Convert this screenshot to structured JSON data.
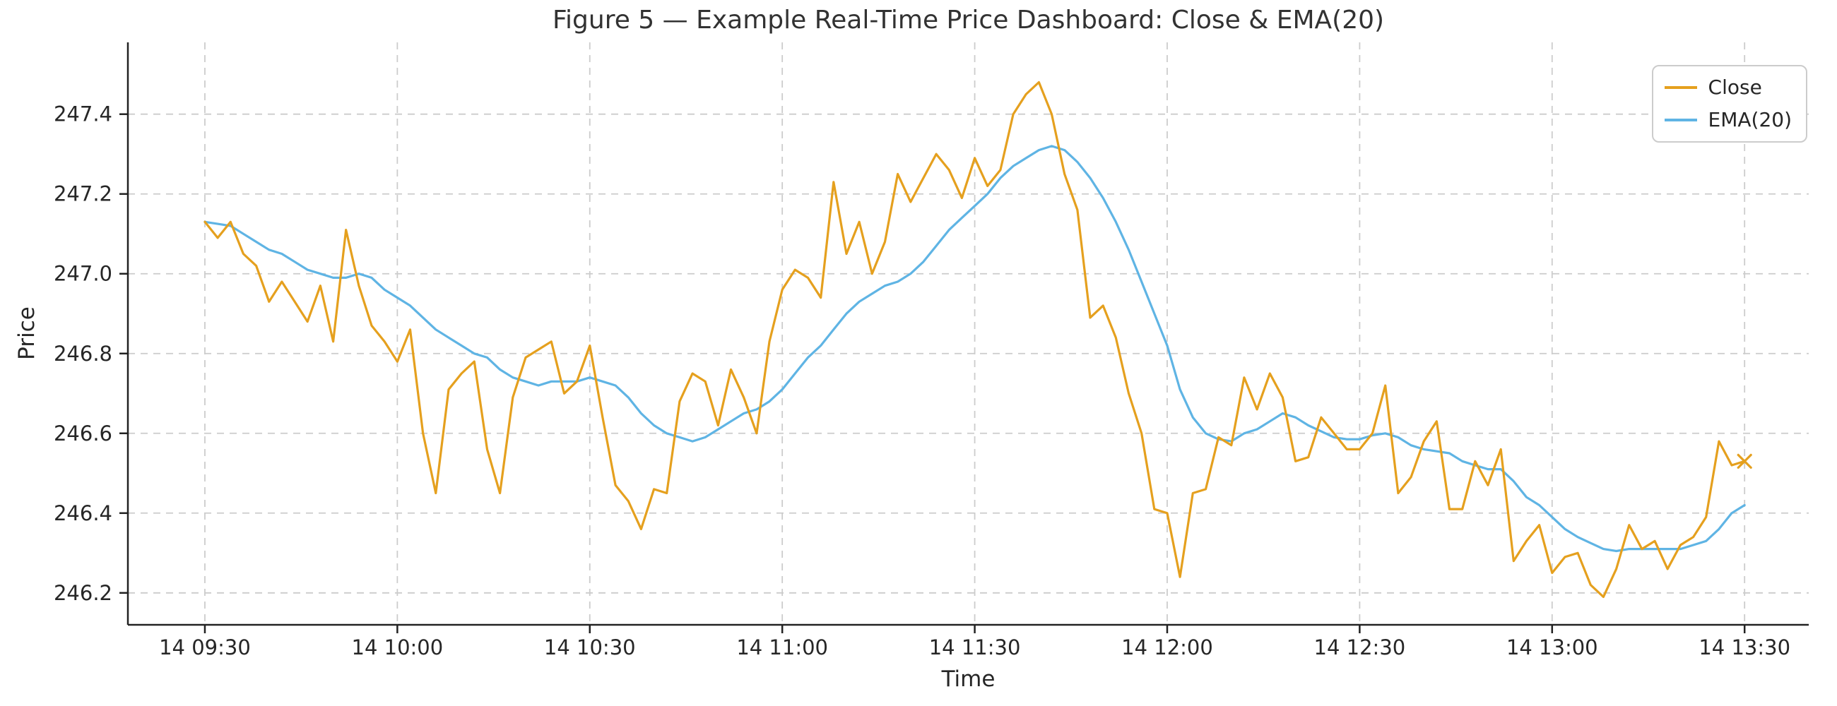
{
  "figure": {
    "title": "Figure 5 — Example Real-Time Price Dashboard: Close & EMA(20)",
    "xlabel": "Time",
    "ylabel": "Price"
  },
  "legend": {
    "position": "upper right",
    "items": [
      {
        "label": "Close",
        "color": "#E5A01E"
      },
      {
        "label": "EMA(20)",
        "color": "#5FB4E4"
      }
    ]
  },
  "chart_data": {
    "type": "line",
    "title": "Figure 5 — Example Real-Time Price Dashboard: Close & EMA(20)",
    "xlabel": "Time",
    "ylabel": "Price",
    "grid": "dashed-both-axes",
    "grid_color": "#cccccc",
    "legend_position": "upper right",
    "x_start_time": "14 09:30",
    "x_end_time": "14 13:30",
    "x_step_minutes": 2,
    "xlim_minutes": [
      -12,
      250
    ],
    "ylim": [
      246.12,
      247.58
    ],
    "x_ticks": [
      {
        "minute": 0,
        "label": "14 09:30"
      },
      {
        "minute": 30,
        "label": "14 10:00"
      },
      {
        "minute": 60,
        "label": "14 10:30"
      },
      {
        "minute": 90,
        "label": "14 11:00"
      },
      {
        "minute": 120,
        "label": "14 11:30"
      },
      {
        "minute": 150,
        "label": "14 12:00"
      },
      {
        "minute": 180,
        "label": "14 12:30"
      },
      {
        "minute": 210,
        "label": "14 13:00"
      },
      {
        "minute": 240,
        "label": "14 13:30"
      }
    ],
    "y_ticks": [
      {
        "value": 246.2,
        "label": "246.2"
      },
      {
        "value": 246.4,
        "label": "246.4"
      },
      {
        "value": 246.6,
        "label": "246.6"
      },
      {
        "value": 246.8,
        "label": "246.8"
      },
      {
        "value": 247.0,
        "label": "247.0"
      },
      {
        "value": 247.2,
        "label": "247.2"
      },
      {
        "value": 247.4,
        "label": "247.4"
      }
    ],
    "series": [
      {
        "name": "Close",
        "color": "#E5A01E",
        "line_width": 3.2,
        "last_marker": "x",
        "values": [
          247.13,
          247.09,
          247.13,
          247.05,
          247.02,
          246.93,
          246.98,
          246.93,
          246.88,
          246.97,
          246.83,
          247.11,
          246.97,
          246.87,
          246.83,
          246.78,
          246.86,
          246.6,
          246.45,
          246.71,
          246.75,
          246.78,
          246.56,
          246.45,
          246.69,
          246.79,
          246.81,
          246.83,
          246.7,
          246.73,
          246.82,
          246.64,
          246.47,
          246.43,
          246.36,
          246.46,
          246.45,
          246.68,
          246.75,
          246.73,
          246.62,
          246.76,
          246.69,
          246.6,
          246.83,
          246.96,
          247.01,
          246.99,
          246.94,
          247.23,
          247.05,
          247.13,
          247.0,
          247.08,
          247.25,
          247.18,
          247.24,
          247.3,
          247.26,
          247.19,
          247.29,
          247.22,
          247.26,
          247.4,
          247.45,
          247.48,
          247.4,
          247.25,
          247.16,
          246.89,
          246.92,
          246.84,
          246.7,
          246.6,
          246.41,
          246.4,
          246.24,
          246.45,
          246.46,
          246.59,
          246.57,
          246.74,
          246.66,
          246.75,
          246.69,
          246.53,
          246.54,
          246.64,
          246.6,
          246.56,
          246.56,
          246.6,
          246.72,
          246.45,
          246.49,
          246.58,
          246.63,
          246.41,
          246.41,
          246.53,
          246.47,
          246.56,
          246.28,
          246.33,
          246.37,
          246.25,
          246.29,
          246.3,
          246.22,
          246.19,
          246.26,
          246.37,
          246.31,
          246.33,
          246.26,
          246.32,
          246.34,
          246.39,
          246.58,
          246.52,
          246.53
        ]
      },
      {
        "name": "EMA(20)",
        "color": "#5FB4E4",
        "line_width": 3.2,
        "last_marker": "none",
        "values": [
          247.13,
          247.125,
          247.12,
          247.1,
          247.08,
          247.06,
          247.05,
          247.03,
          247.01,
          247.0,
          246.99,
          246.99,
          247.0,
          246.99,
          246.96,
          246.94,
          246.92,
          246.89,
          246.86,
          246.84,
          246.82,
          246.8,
          246.79,
          246.76,
          246.74,
          246.73,
          246.72,
          246.73,
          246.73,
          246.73,
          246.74,
          246.73,
          246.72,
          246.69,
          246.65,
          246.62,
          246.6,
          246.59,
          246.58,
          246.59,
          246.61,
          246.63,
          246.65,
          246.66,
          246.68,
          246.71,
          246.75,
          246.79,
          246.82,
          246.86,
          246.9,
          246.93,
          246.95,
          246.97,
          246.98,
          247.0,
          247.03,
          247.07,
          247.11,
          247.14,
          247.17,
          247.2,
          247.24,
          247.27,
          247.29,
          247.31,
          247.32,
          247.31,
          247.28,
          247.24,
          247.19,
          247.13,
          247.06,
          246.98,
          246.9,
          246.82,
          246.71,
          246.64,
          246.6,
          246.585,
          246.58,
          246.6,
          246.61,
          246.63,
          246.65,
          246.64,
          246.62,
          246.605,
          246.59,
          246.585,
          246.585,
          246.595,
          246.6,
          246.59,
          246.57,
          246.56,
          246.555,
          246.55,
          246.53,
          246.52,
          246.51,
          246.51,
          246.48,
          246.44,
          246.42,
          246.39,
          246.36,
          246.34,
          246.325,
          246.31,
          246.305,
          246.31,
          246.31,
          246.31,
          246.31,
          246.31,
          246.32,
          246.33,
          246.36,
          246.4,
          246.42
        ]
      }
    ]
  }
}
